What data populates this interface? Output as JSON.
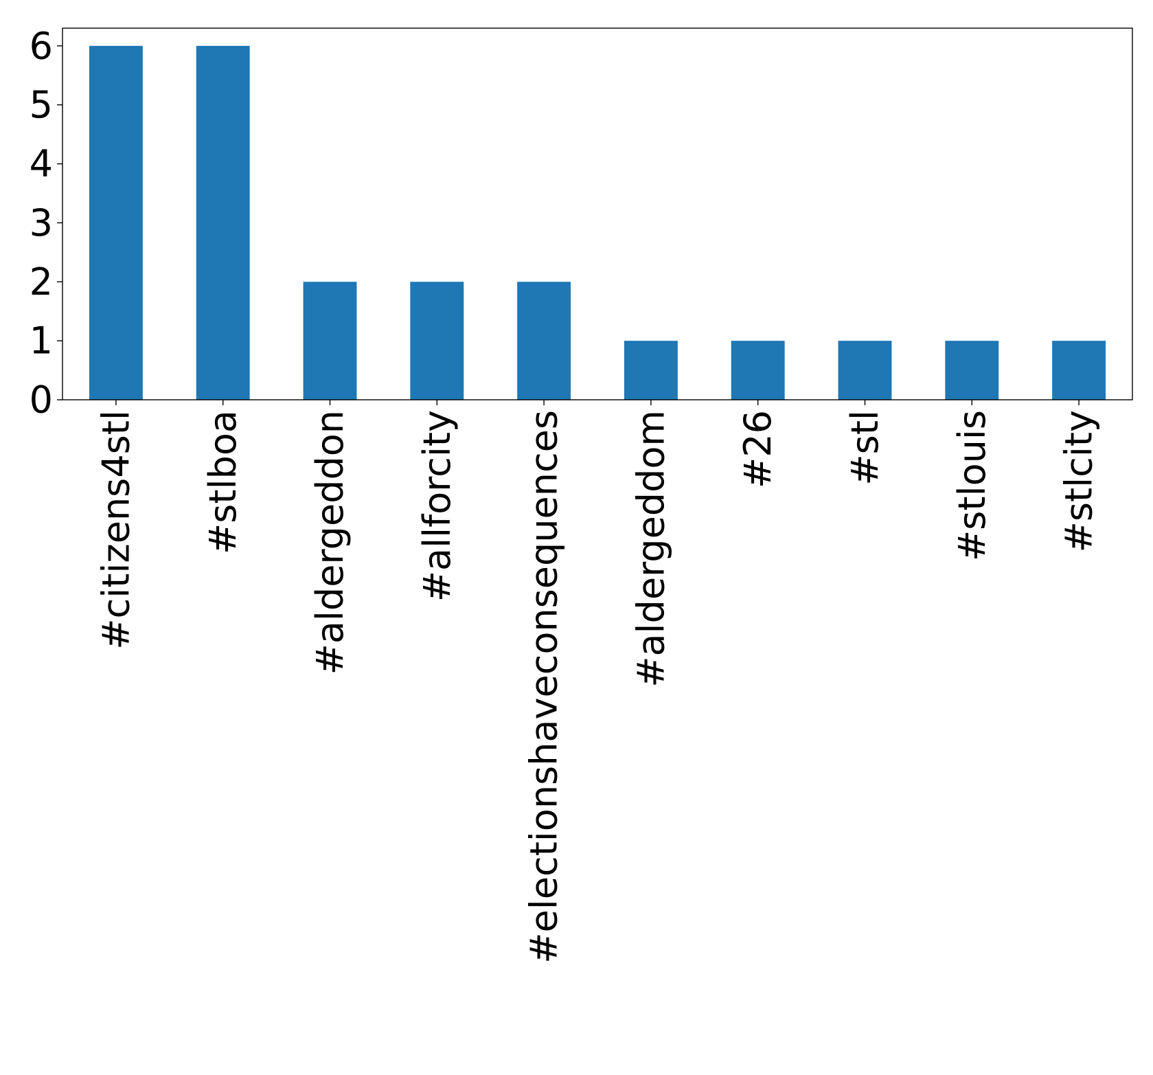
{
  "chart_data": {
    "type": "bar",
    "title": "",
    "xlabel": "",
    "ylabel": "",
    "categories": [
      "#citizens4stl",
      "#stlboa",
      "#aldergeddon",
      "#allforcity",
      "#electionshaveconsequences",
      "#aldergeddom",
      "#26",
      "#stl",
      "#stlouis",
      "#stlcity"
    ],
    "values": [
      6,
      6,
      2,
      2,
      2,
      1,
      1,
      1,
      1,
      1
    ],
    "ylim": [
      0,
      6.3
    ],
    "yticks": [
      0,
      1,
      2,
      3,
      4,
      5,
      6
    ],
    "bar_color": "#1f77b4",
    "grid": false,
    "legend": "none",
    "xtick_rotation": "vertical"
  }
}
